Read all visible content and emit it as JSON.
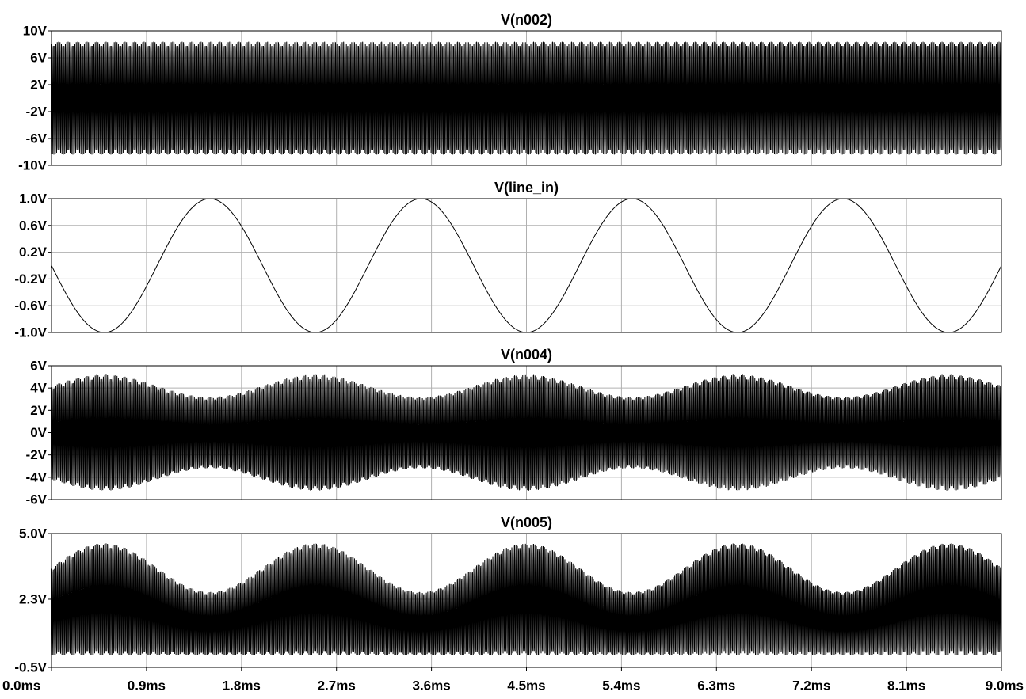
{
  "chart_data": [
    {
      "type": "line",
      "title": "V(n002)",
      "xlabel": "",
      "ylabel": "",
      "xlim": [
        0,
        9
      ],
      "ylim": [
        -10,
        10
      ],
      "yticks": [
        "10V",
        "6V",
        "2V",
        "-2V",
        "-6V",
        "-10V"
      ],
      "ytick_values": [
        10,
        6,
        2,
        -2,
        -6,
        -10
      ],
      "grid": true,
      "series": [
        {
          "kind": "carrier",
          "amplitude_v": 8.4,
          "offset_v": 0,
          "carrier_cycles": 700
        }
      ]
    },
    {
      "type": "line",
      "title": "V(line_in)",
      "xlabel": "",
      "ylabel": "",
      "xlim": [
        0,
        9
      ],
      "ylim": [
        -1,
        1
      ],
      "yticks": [
        "1.0V",
        "0.6V",
        "0.2V",
        "-0.2V",
        "-0.6V",
        "-1.0V"
      ],
      "ytick_values": [
        1.0,
        0.6,
        0.2,
        -0.2,
        -0.6,
        -1.0
      ],
      "grid": true,
      "series": [
        {
          "kind": "sine",
          "amplitude_v": 1.0,
          "period_ms": 2.0,
          "peak_ms": 1.5
        }
      ]
    },
    {
      "type": "line",
      "title": "V(n004)",
      "xlabel": "",
      "ylabel": "",
      "xlim": [
        0,
        9
      ],
      "ylim": [
        -6,
        6
      ],
      "yticks": [
        "6V",
        "4V",
        "2V",
        "0V",
        "-2V",
        "-4V",
        "-6V"
      ],
      "ytick_values": [
        6,
        4,
        2,
        0,
        -2,
        -4,
        -6
      ],
      "grid": true,
      "series": [
        {
          "kind": "am_symmetric",
          "envelope_center_v": 4.2,
          "envelope_swing_v": 1.0,
          "period_ms": 2.0,
          "peak_ms": 0.5,
          "carrier_cycles": 700
        }
      ]
    },
    {
      "type": "line",
      "title": "V(n005)",
      "xlabel": "",
      "ylabel": "",
      "xlim": [
        0,
        9
      ],
      "ylim": [
        -0.5,
        5.0
      ],
      "yticks": [
        "5.0V",
        "2.3V",
        "-0.5V"
      ],
      "ytick_values": [
        5.0,
        2.3,
        -0.5
      ],
      "grid": true,
      "series": [
        {
          "kind": "am_rectified",
          "floor_v": 0.0,
          "envelope_center_v": 3.6,
          "envelope_swing_v": 1.0,
          "period_ms": 2.0,
          "peak_ms": 0.5,
          "carrier_cycles": 700
        }
      ]
    }
  ],
  "x_axis": {
    "ticks": [
      "0.0ms",
      "0.9ms",
      "1.8ms",
      "2.7ms",
      "3.6ms",
      "4.5ms",
      "5.4ms",
      "6.3ms",
      "7.2ms",
      "8.1ms",
      "9.0ms"
    ],
    "tick_values": [
      0,
      0.9,
      1.8,
      2.7,
      3.6,
      4.5,
      5.4,
      6.3,
      7.2,
      8.1,
      9.0
    ]
  }
}
